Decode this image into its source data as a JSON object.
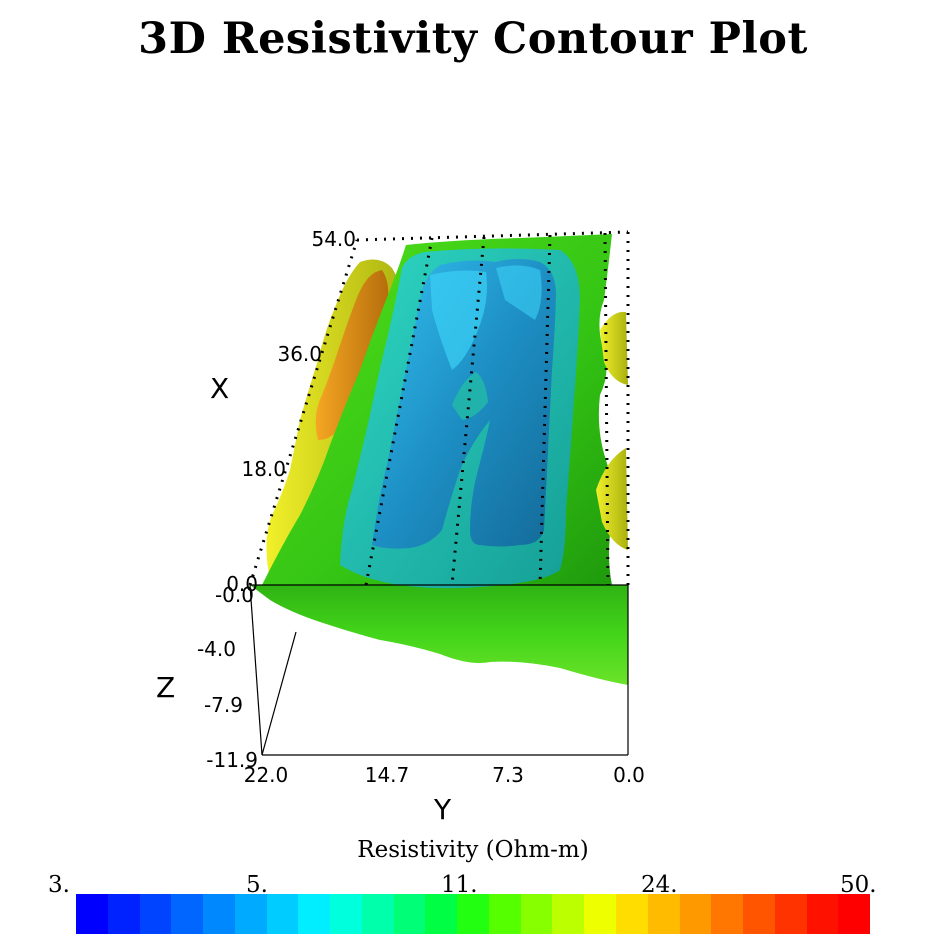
{
  "title": "3D Resistivity Contour Plot",
  "chart_data": {
    "type": "3d-isosurface",
    "title": "3D Resistivity Contour Plot",
    "x_axis": {
      "label": "X",
      "ticks": [
        "0.0",
        "18.0",
        "36.0",
        "54.0"
      ],
      "range": [
        0.0,
        54.0
      ]
    },
    "y_axis": {
      "label": "Y",
      "ticks": [
        "22.0",
        "14.7",
        "7.3",
        "0.0"
      ],
      "range": [
        22.0,
        0.0
      ]
    },
    "z_axis": {
      "label": "Z",
      "ticks": [
        "-0.0",
        "-4.0",
        "-7.9",
        "-11.9"
      ],
      "range": [
        -0.0,
        -11.9
      ]
    },
    "colorbar": {
      "label": "Resistivity (Ohm-m)",
      "ticks": [
        "3.",
        "5.",
        "11.",
        "24.",
        "50."
      ],
      "range": [
        3,
        50
      ],
      "scale": "log",
      "colors": [
        "#0000ff",
        "#0022ff",
        "#0044ff",
        "#0066ff",
        "#0088ff",
        "#00aaff",
        "#00ccff",
        "#00eeff",
        "#00ffdd",
        "#00ffaa",
        "#00ff77",
        "#00ff44",
        "#22ff11",
        "#55ff00",
        "#88ff00",
        "#bbff00",
        "#eeff00",
        "#ffdd00",
        "#ffbb00",
        "#ff9900",
        "#ff7700",
        "#ff5500",
        "#ff3300",
        "#ff1100",
        "#ff0000"
      ]
    },
    "isosurfaces": [
      {
        "level": "low",
        "color": "#1fa6d8"
      },
      {
        "level": "mid-low",
        "color": "#19c9bd"
      },
      {
        "level": "mid",
        "color": "#33d118"
      },
      {
        "level": "mid-high",
        "color": "#c9dd18"
      },
      {
        "level": "high",
        "color": "#e69a18"
      }
    ]
  }
}
